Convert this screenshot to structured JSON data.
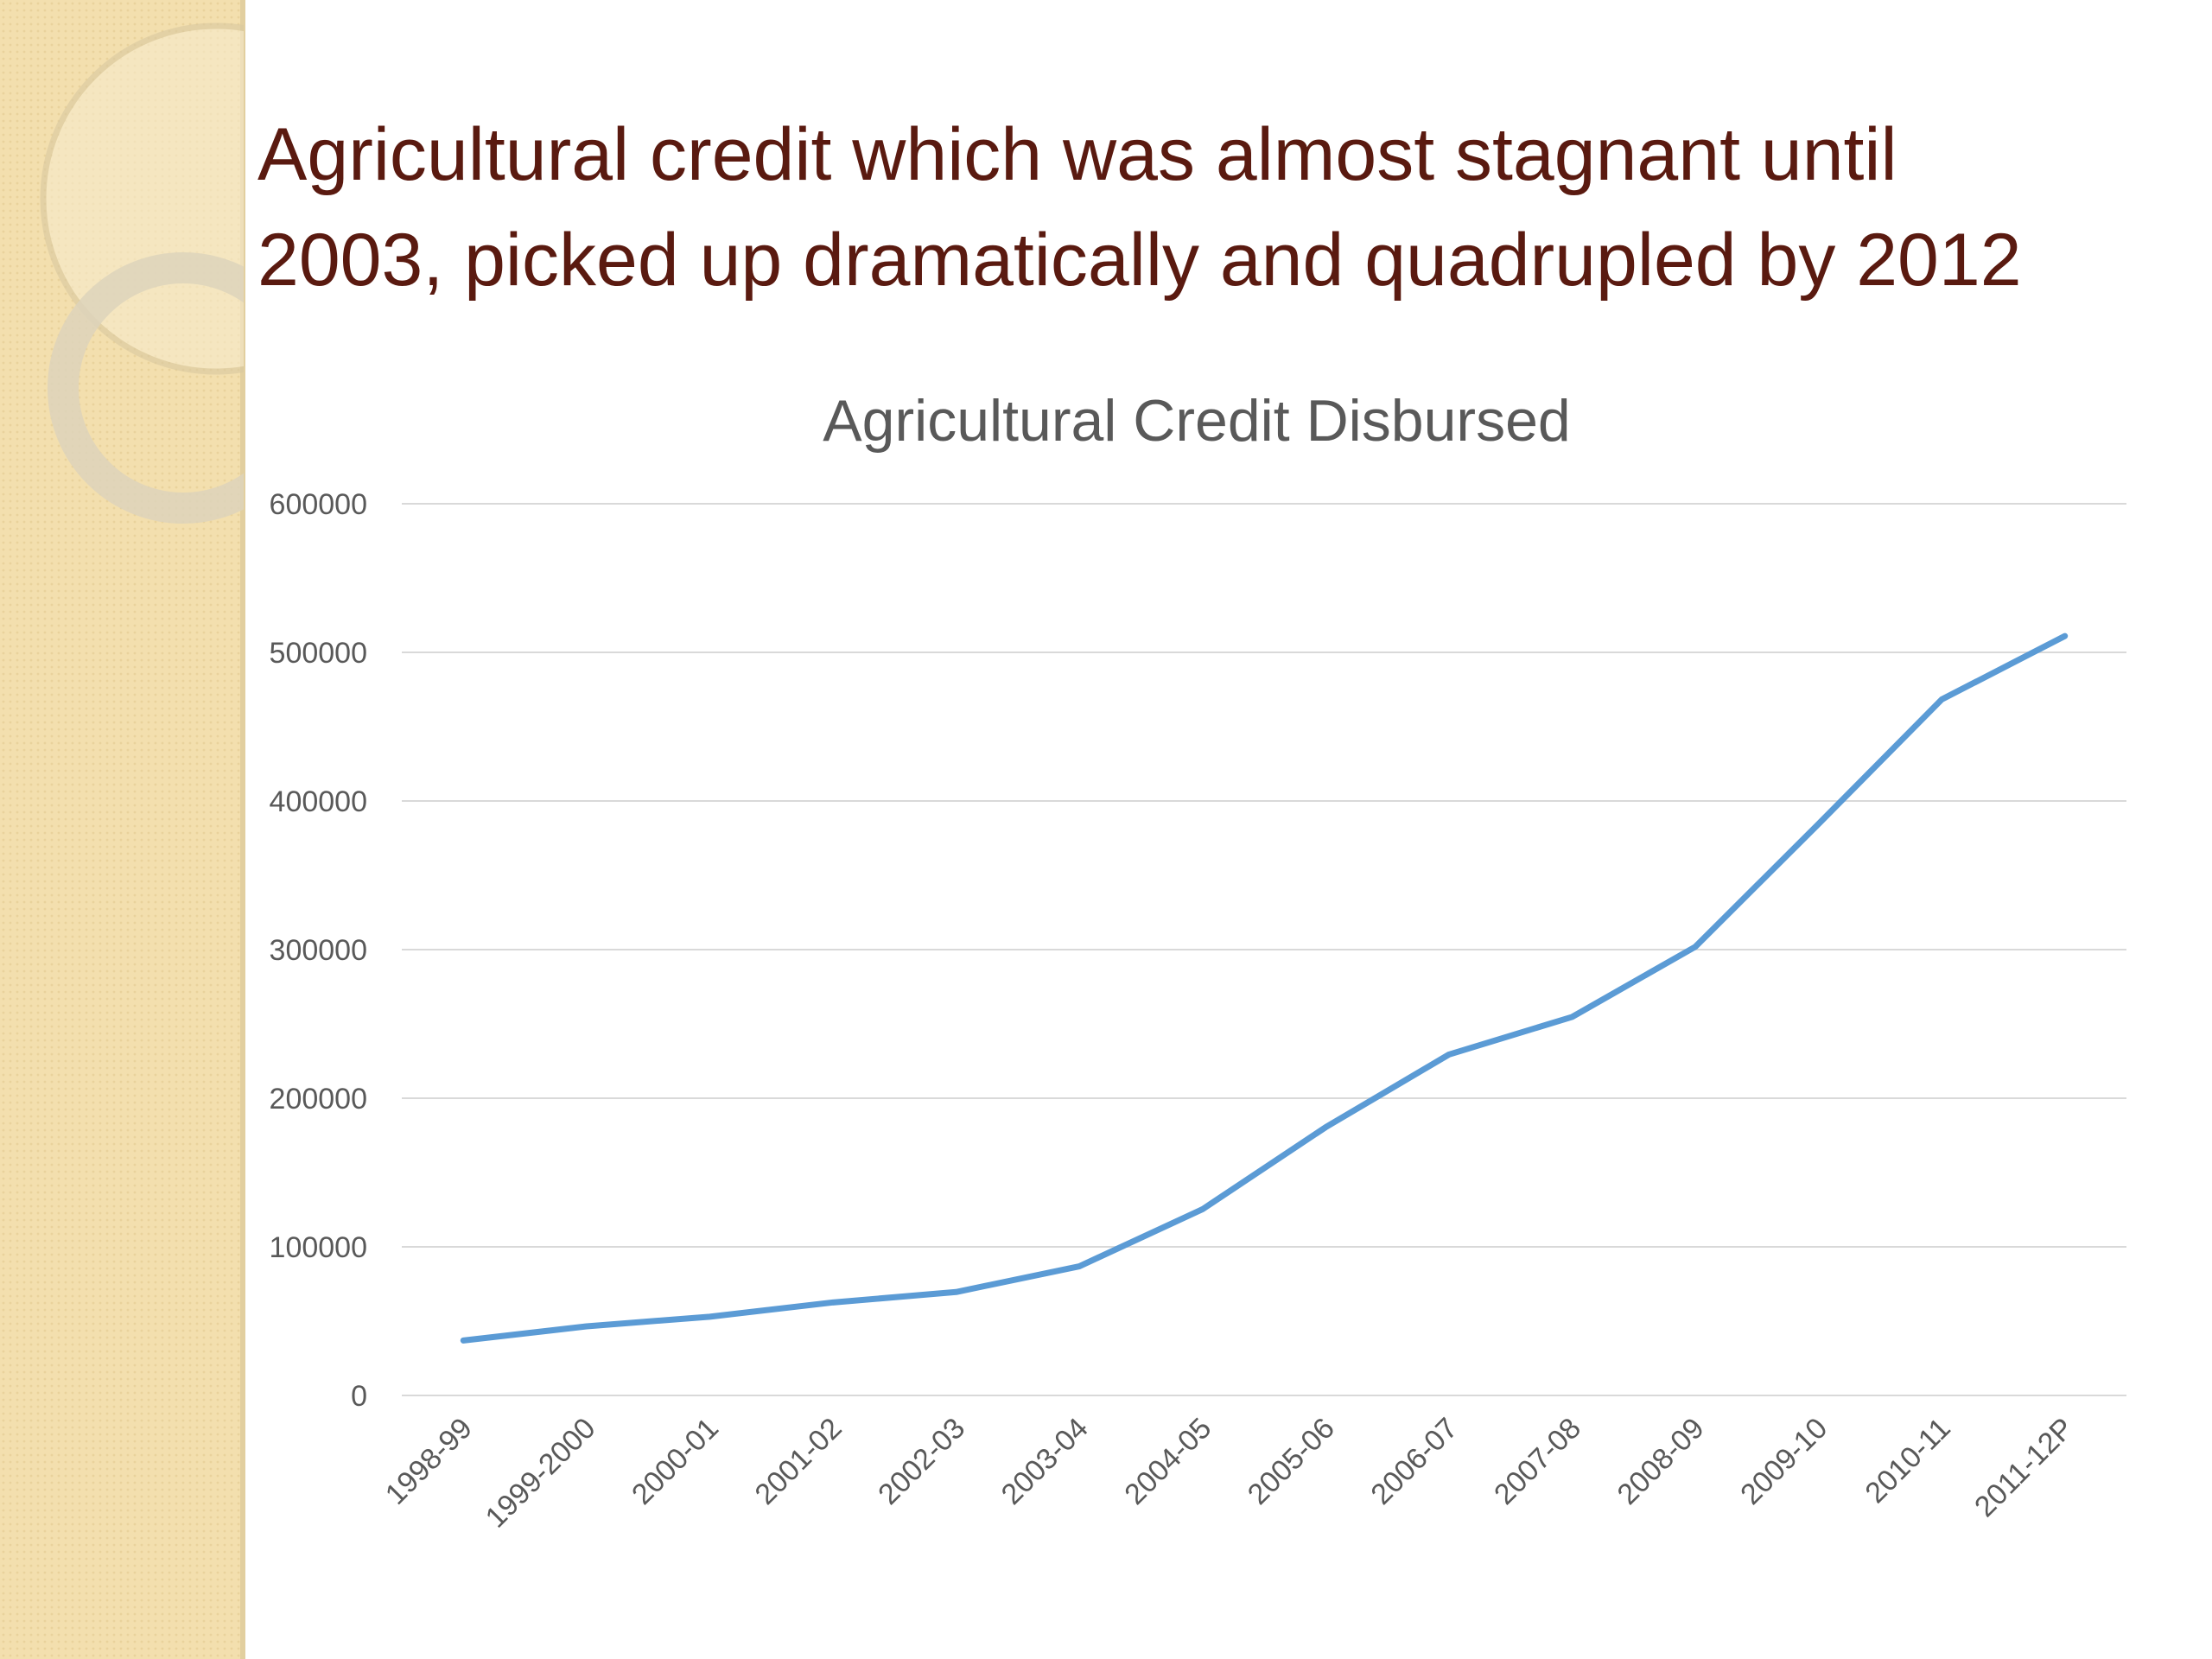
{
  "chart_data": {
    "type": "line",
    "slide_title": [
      "Agricultural credit which was almost stagnant until",
      "2003, picked up dramatically and quadrupled by 2012"
    ],
    "title": "Agricultural Credit Disbursed",
    "categories": [
      "1998-99",
      "1999-2000",
      "2000-01",
      "2001-02",
      "2002-03",
      "2003-04",
      "2004-05",
      "2005-06",
      "2006-07",
      "2007-08",
      "2008-09",
      "2009-10",
      "2010-11",
      "2011-12P"
    ],
    "series": [
      {
        "color": "#5b9bd5",
        "values": [
          37000,
          46500,
          53000,
          62600,
          69600,
          86900,
          125300,
          180500,
          229400,
          254700,
          301900,
          384500,
          468300,
          511000
        ]
      }
    ],
    "ylim": [
      0,
      600000
    ],
    "yticks": [
      0,
      100000,
      200000,
      300000,
      400000,
      500000,
      600000
    ],
    "grid": true
  }
}
